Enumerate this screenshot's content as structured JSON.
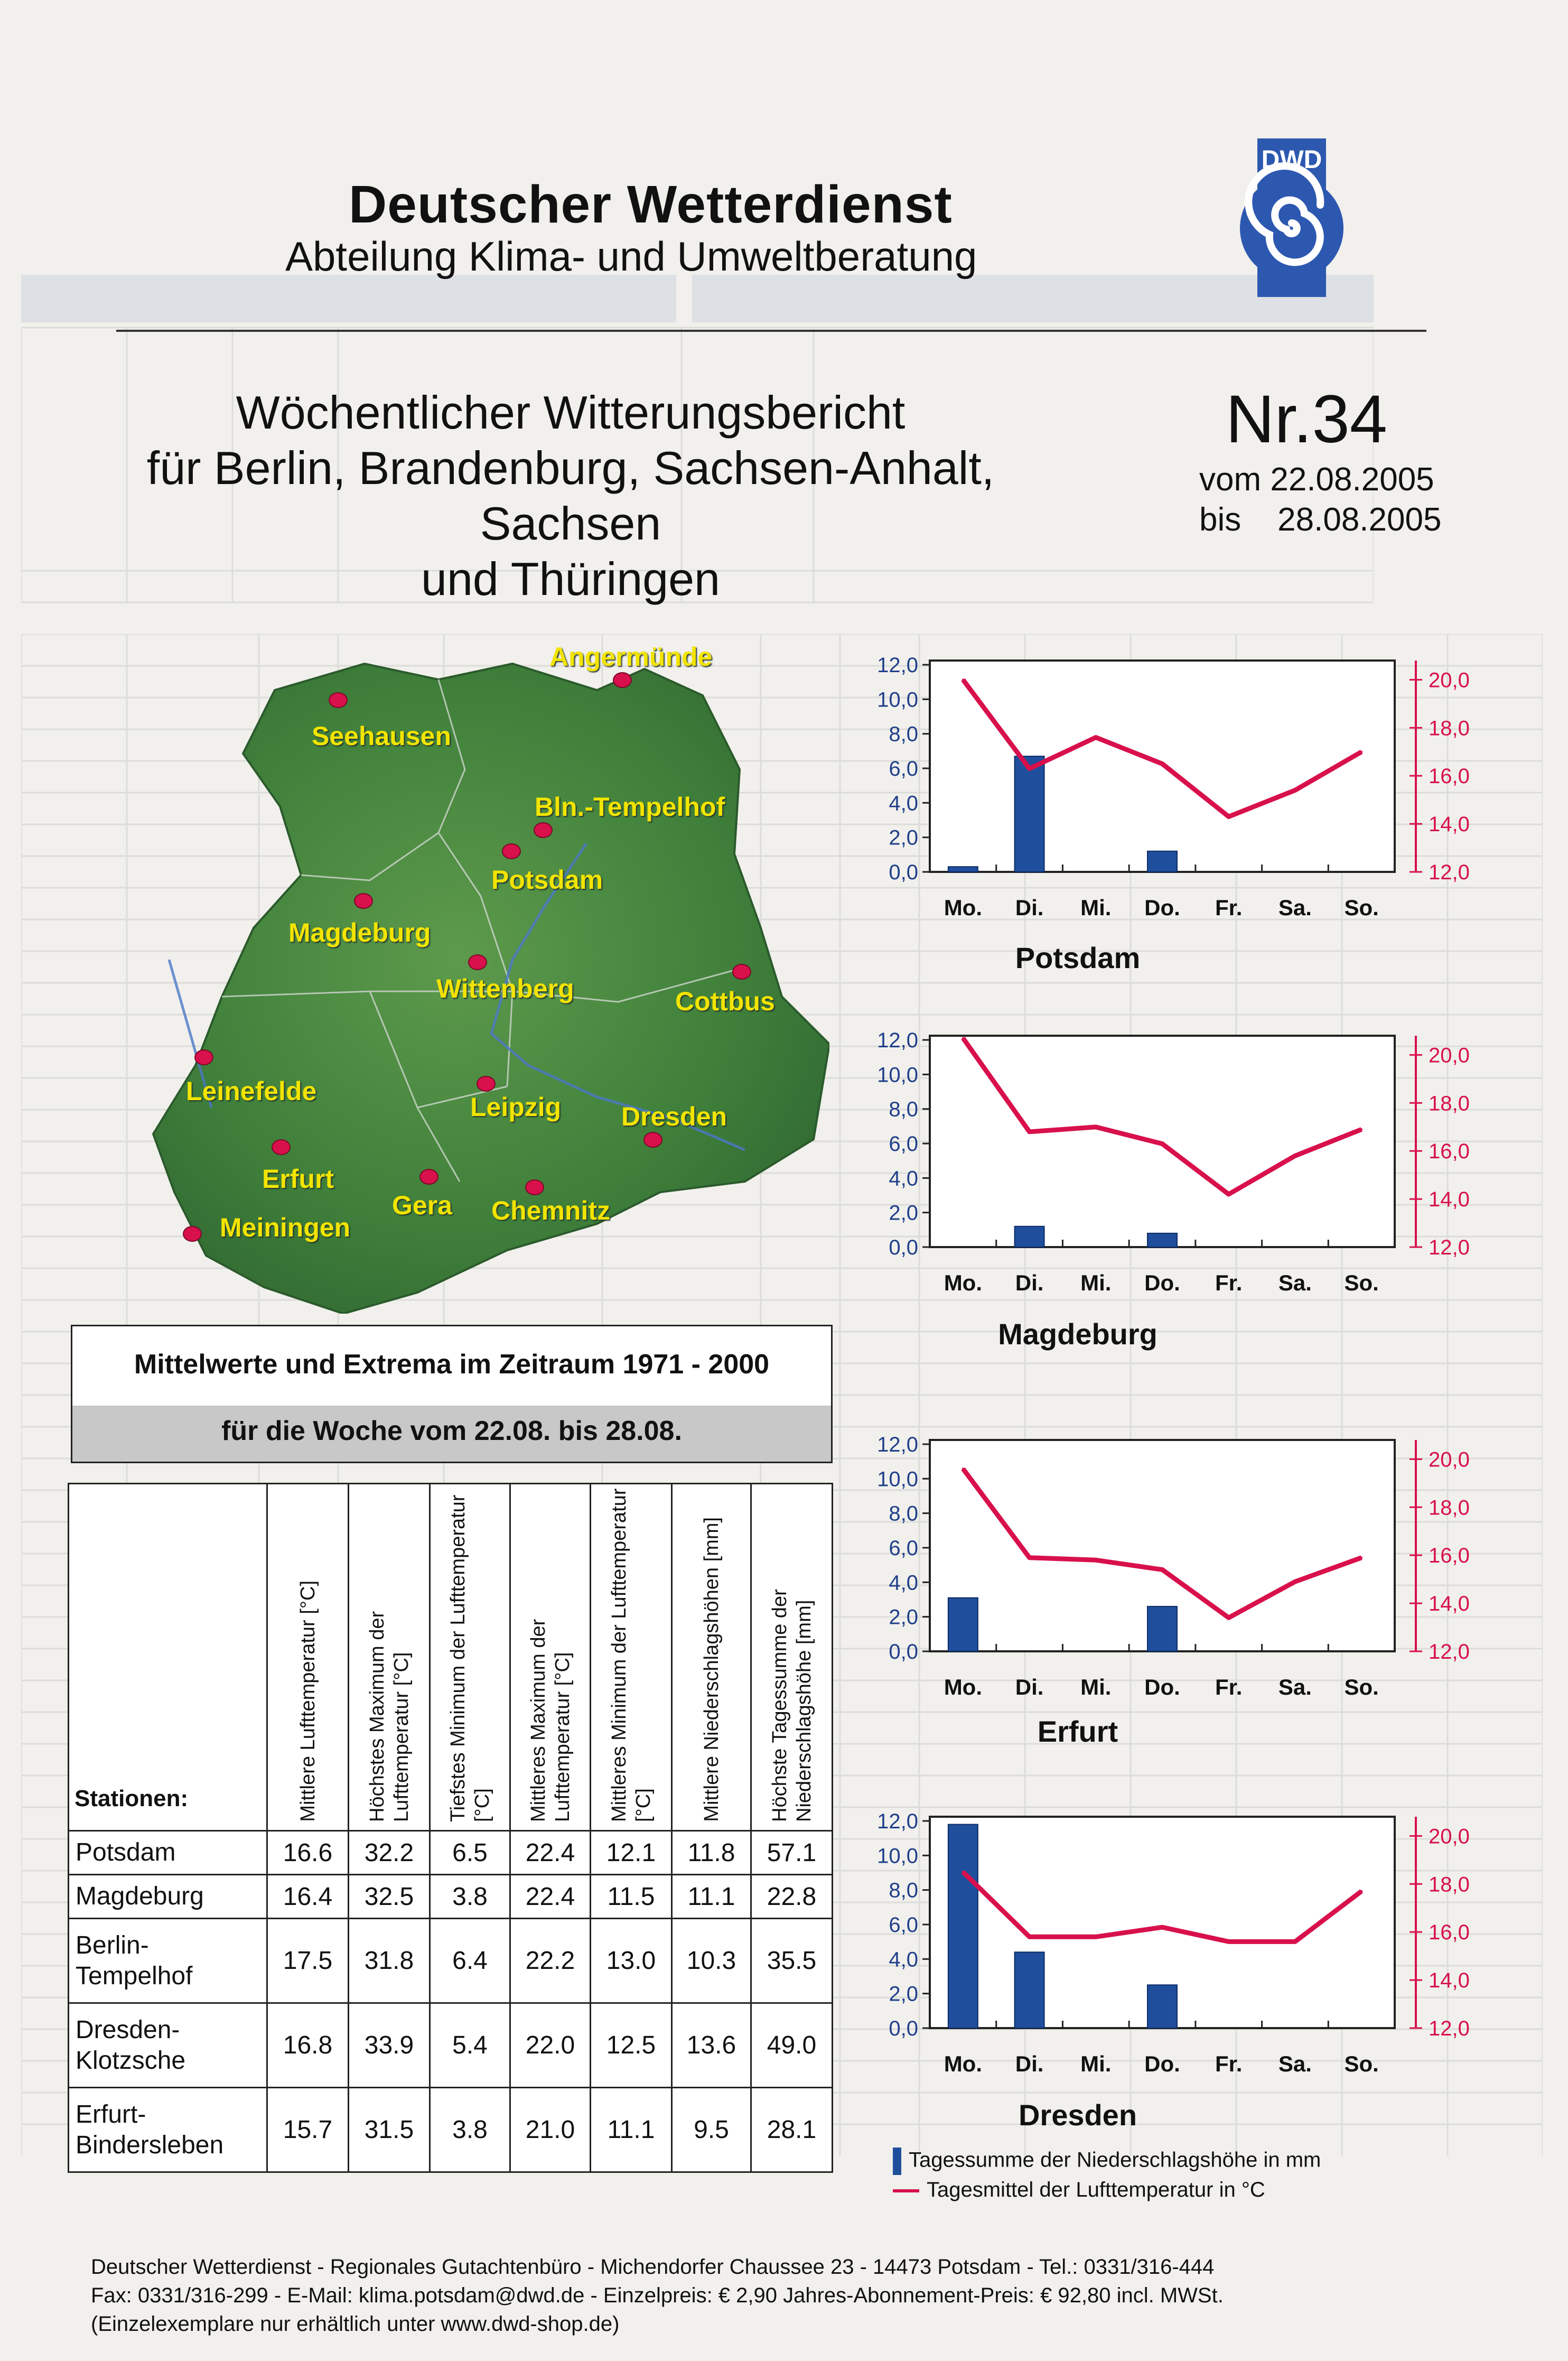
{
  "header": {
    "org": "Deutscher Wetterdienst",
    "dept": "Abteilung Klima- und Umweltberatung",
    "logo_text": "DWD"
  },
  "report": {
    "title_lines": [
      "Wöchentlicher Witterungsbericht",
      "für Berlin, Brandenburg, Sachsen-Anhalt, Sachsen",
      "und Thüringen"
    ],
    "number": "Nr.34",
    "from": "vom 22.08.2005",
    "to": "bis    28.08.2005"
  },
  "map": {
    "cities": [
      "Angermünde",
      "Seehausen",
      "Bln.-Tempelhof",
      "Potsdam",
      "Magdeburg",
      "Wittenberg",
      "Cottbus",
      "Leinefelde",
      "Leipzig",
      "Dresden",
      "Erfurt",
      "Gera",
      "Chemnitz",
      "Meiningen"
    ],
    "land_color": "#3f7f3a",
    "dot_color": "#d8104c",
    "label_color": "#f2e400"
  },
  "means": {
    "title": "Mittelwerte und Extrema im Zeitraum 1971 - 2000",
    "subtitle": "für die Woche vom 22.08. bis 28.08."
  },
  "stats_table": {
    "station_header": "Stationen:",
    "columns": [
      "Mittlere Lufttemperatur [°C]",
      "Höchstes Maximum der Lufttemperatur [°C]",
      "Tiefstes Minimum der Lufttemperatur [°C]",
      "Mittleres Maximum der Lufttemperatur [°C]",
      "Mittleres Minimum der Lufttemperatur [°C]",
      "Mittlere Niederschlagshöhen [mm]",
      "Höchste Tagessumme der Niederschlagshöhe [mm]"
    ],
    "rows": [
      {
        "name": "Potsdam",
        "values": [
          "16.6",
          "32.2",
          "6.5",
          "22.4",
          "12.1",
          "11.8",
          "57.1"
        ]
      },
      {
        "name": "Magdeburg",
        "values": [
          "16.4",
          "32.5",
          "3.8",
          "22.4",
          "11.5",
          "11.1",
          "22.8"
        ]
      },
      {
        "name": "Berlin-\nTempelhof",
        "values": [
          "17.5",
          "31.8",
          "6.4",
          "22.2",
          "13.0",
          "10.3",
          "35.5"
        ]
      },
      {
        "name": "Dresden-\nKlotzsche",
        "values": [
          "16.8",
          "33.9",
          "5.4",
          "22.0",
          "12.5",
          "13.6",
          "49.0"
        ]
      },
      {
        "name": "Erfurt-\nBindersleben",
        "values": [
          "15.7",
          "31.5",
          "3.8",
          "21.0",
          "11.1",
          "9.5",
          "28.1"
        ]
      }
    ]
  },
  "chart_data": [
    {
      "type": "bar",
      "title": "Potsdam",
      "categories": [
        "Mo.",
        "Di.",
        "Mi.",
        "Do.",
        "Fr.",
        "Sa.",
        "So."
      ],
      "y_left": {
        "ticks": [
          "0,0",
          "2,0",
          "4,0",
          "6,0",
          "8,0",
          "10,0",
          "12,0"
        ],
        "min": 0,
        "max": 12
      },
      "y_right": {
        "ticks": [
          "12,0",
          "14,0",
          "16,0",
          "18,0",
          "20,0"
        ],
        "min": 12,
        "max": 20.8
      },
      "series": [
        {
          "name": "Tagessumme der Niederschlagshöhe in mm",
          "kind": "bar",
          "axis": "left",
          "color": "#1f4e9c",
          "values": [
            0.3,
            6.7,
            0,
            1.2,
            0,
            0,
            0
          ]
        },
        {
          "name": "Tagesmittel der Lufttemperatur in °C",
          "kind": "line",
          "axis": "right",
          "color": "#d8104c",
          "values": [
            20.0,
            16.3,
            17.6,
            16.5,
            14.3,
            15.4,
            17.0
          ]
        }
      ]
    },
    {
      "type": "bar",
      "title": "Magdeburg",
      "categories": [
        "Mo.",
        "Di.",
        "Mi.",
        "Do.",
        "Fr.",
        "Sa.",
        "So."
      ],
      "y_left": {
        "ticks": [
          "0,0",
          "2,0",
          "4,0",
          "6,0",
          "8,0",
          "10,0",
          "12,0"
        ],
        "min": 0,
        "max": 12
      },
      "y_right": {
        "ticks": [
          "12,0",
          "14,0",
          "16,0",
          "18,0",
          "20,0"
        ],
        "min": 12,
        "max": 20.8
      },
      "series": [
        {
          "name": "Tagessumme der Niederschlagshöhe in mm",
          "kind": "bar",
          "axis": "left",
          "color": "#1f4e9c",
          "values": [
            0,
            1.2,
            0,
            0.8,
            0,
            0,
            0
          ]
        },
        {
          "name": "Tagesmittel der Lufttemperatur in °C",
          "kind": "line",
          "axis": "right",
          "color": "#d8104c",
          "values": [
            20.7,
            16.8,
            17.0,
            16.3,
            14.2,
            15.8,
            16.9
          ]
        }
      ]
    },
    {
      "type": "bar",
      "title": "Erfurt",
      "categories": [
        "Mo.",
        "Di.",
        "Mi.",
        "Do.",
        "Fr.",
        "Sa.",
        "So."
      ],
      "y_left": {
        "ticks": [
          "0,0",
          "2,0",
          "4,0",
          "6,0",
          "8,0",
          "10,0",
          "12,0"
        ],
        "min": 0,
        "max": 12
      },
      "y_right": {
        "ticks": [
          "12,0",
          "14,0",
          "16,0",
          "18,0",
          "20,0"
        ],
        "min": 12,
        "max": 20.8
      },
      "series": [
        {
          "name": "Tagessumme der Niederschlagshöhe in mm",
          "kind": "bar",
          "axis": "left",
          "color": "#1f4e9c",
          "values": [
            3.1,
            0,
            0,
            2.6,
            0,
            0,
            0
          ]
        },
        {
          "name": "Tagesmittel der Lufttemperatur in °C",
          "kind": "line",
          "axis": "right",
          "color": "#d8104c",
          "values": [
            19.6,
            15.9,
            15.8,
            15.4,
            13.4,
            14.9,
            15.9
          ]
        }
      ]
    },
    {
      "type": "bar",
      "title": "Dresden",
      "categories": [
        "Mo.",
        "Di.",
        "Mi.",
        "Do.",
        "Fr.",
        "Sa.",
        "So."
      ],
      "y_left": {
        "ticks": [
          "0,0",
          "2,0",
          "4,0",
          "6,0",
          "8,0",
          "10,0",
          "12,0"
        ],
        "min": 0,
        "max": 12
      },
      "y_right": {
        "ticks": [
          "12,0",
          "14,0",
          "16,0",
          "18,0",
          "20,0"
        ],
        "min": 12,
        "max": 20.8
      },
      "series": [
        {
          "name": "Tagessumme der Niederschlagshöhe in mm",
          "kind": "bar",
          "axis": "left",
          "color": "#1f4e9c",
          "values": [
            11.8,
            4.4,
            0,
            2.5,
            0,
            0,
            0
          ]
        },
        {
          "name": "Tagesmittel der Lufttemperatur in °C",
          "kind": "line",
          "axis": "right",
          "color": "#d8104c",
          "values": [
            18.5,
            15.8,
            15.8,
            16.2,
            15.6,
            15.6,
            17.7
          ]
        }
      ]
    }
  ],
  "legend": {
    "precip": "Tagessumme der Niederschlagshöhe in mm",
    "temp": "Tagesmittel der Lufttemperatur in °C"
  },
  "footer": {
    "line1": "Deutscher Wetterdienst - Regionales Gutachtenbüro - Michendorfer Chaussee 23 - 14473 Potsdam  -  Tel.: 0331/316-444",
    "line2": "Fax: 0331/316-299  -  E-Mail: klima.potsdam@dwd.de  -  Einzelpreis: € 2,90 Jahres-Abonnement-Preis: € 92,80 incl. MWSt.",
    "line3": "(Einzelexemplare nur erhältlich unter www.dwd-shop.de)"
  }
}
